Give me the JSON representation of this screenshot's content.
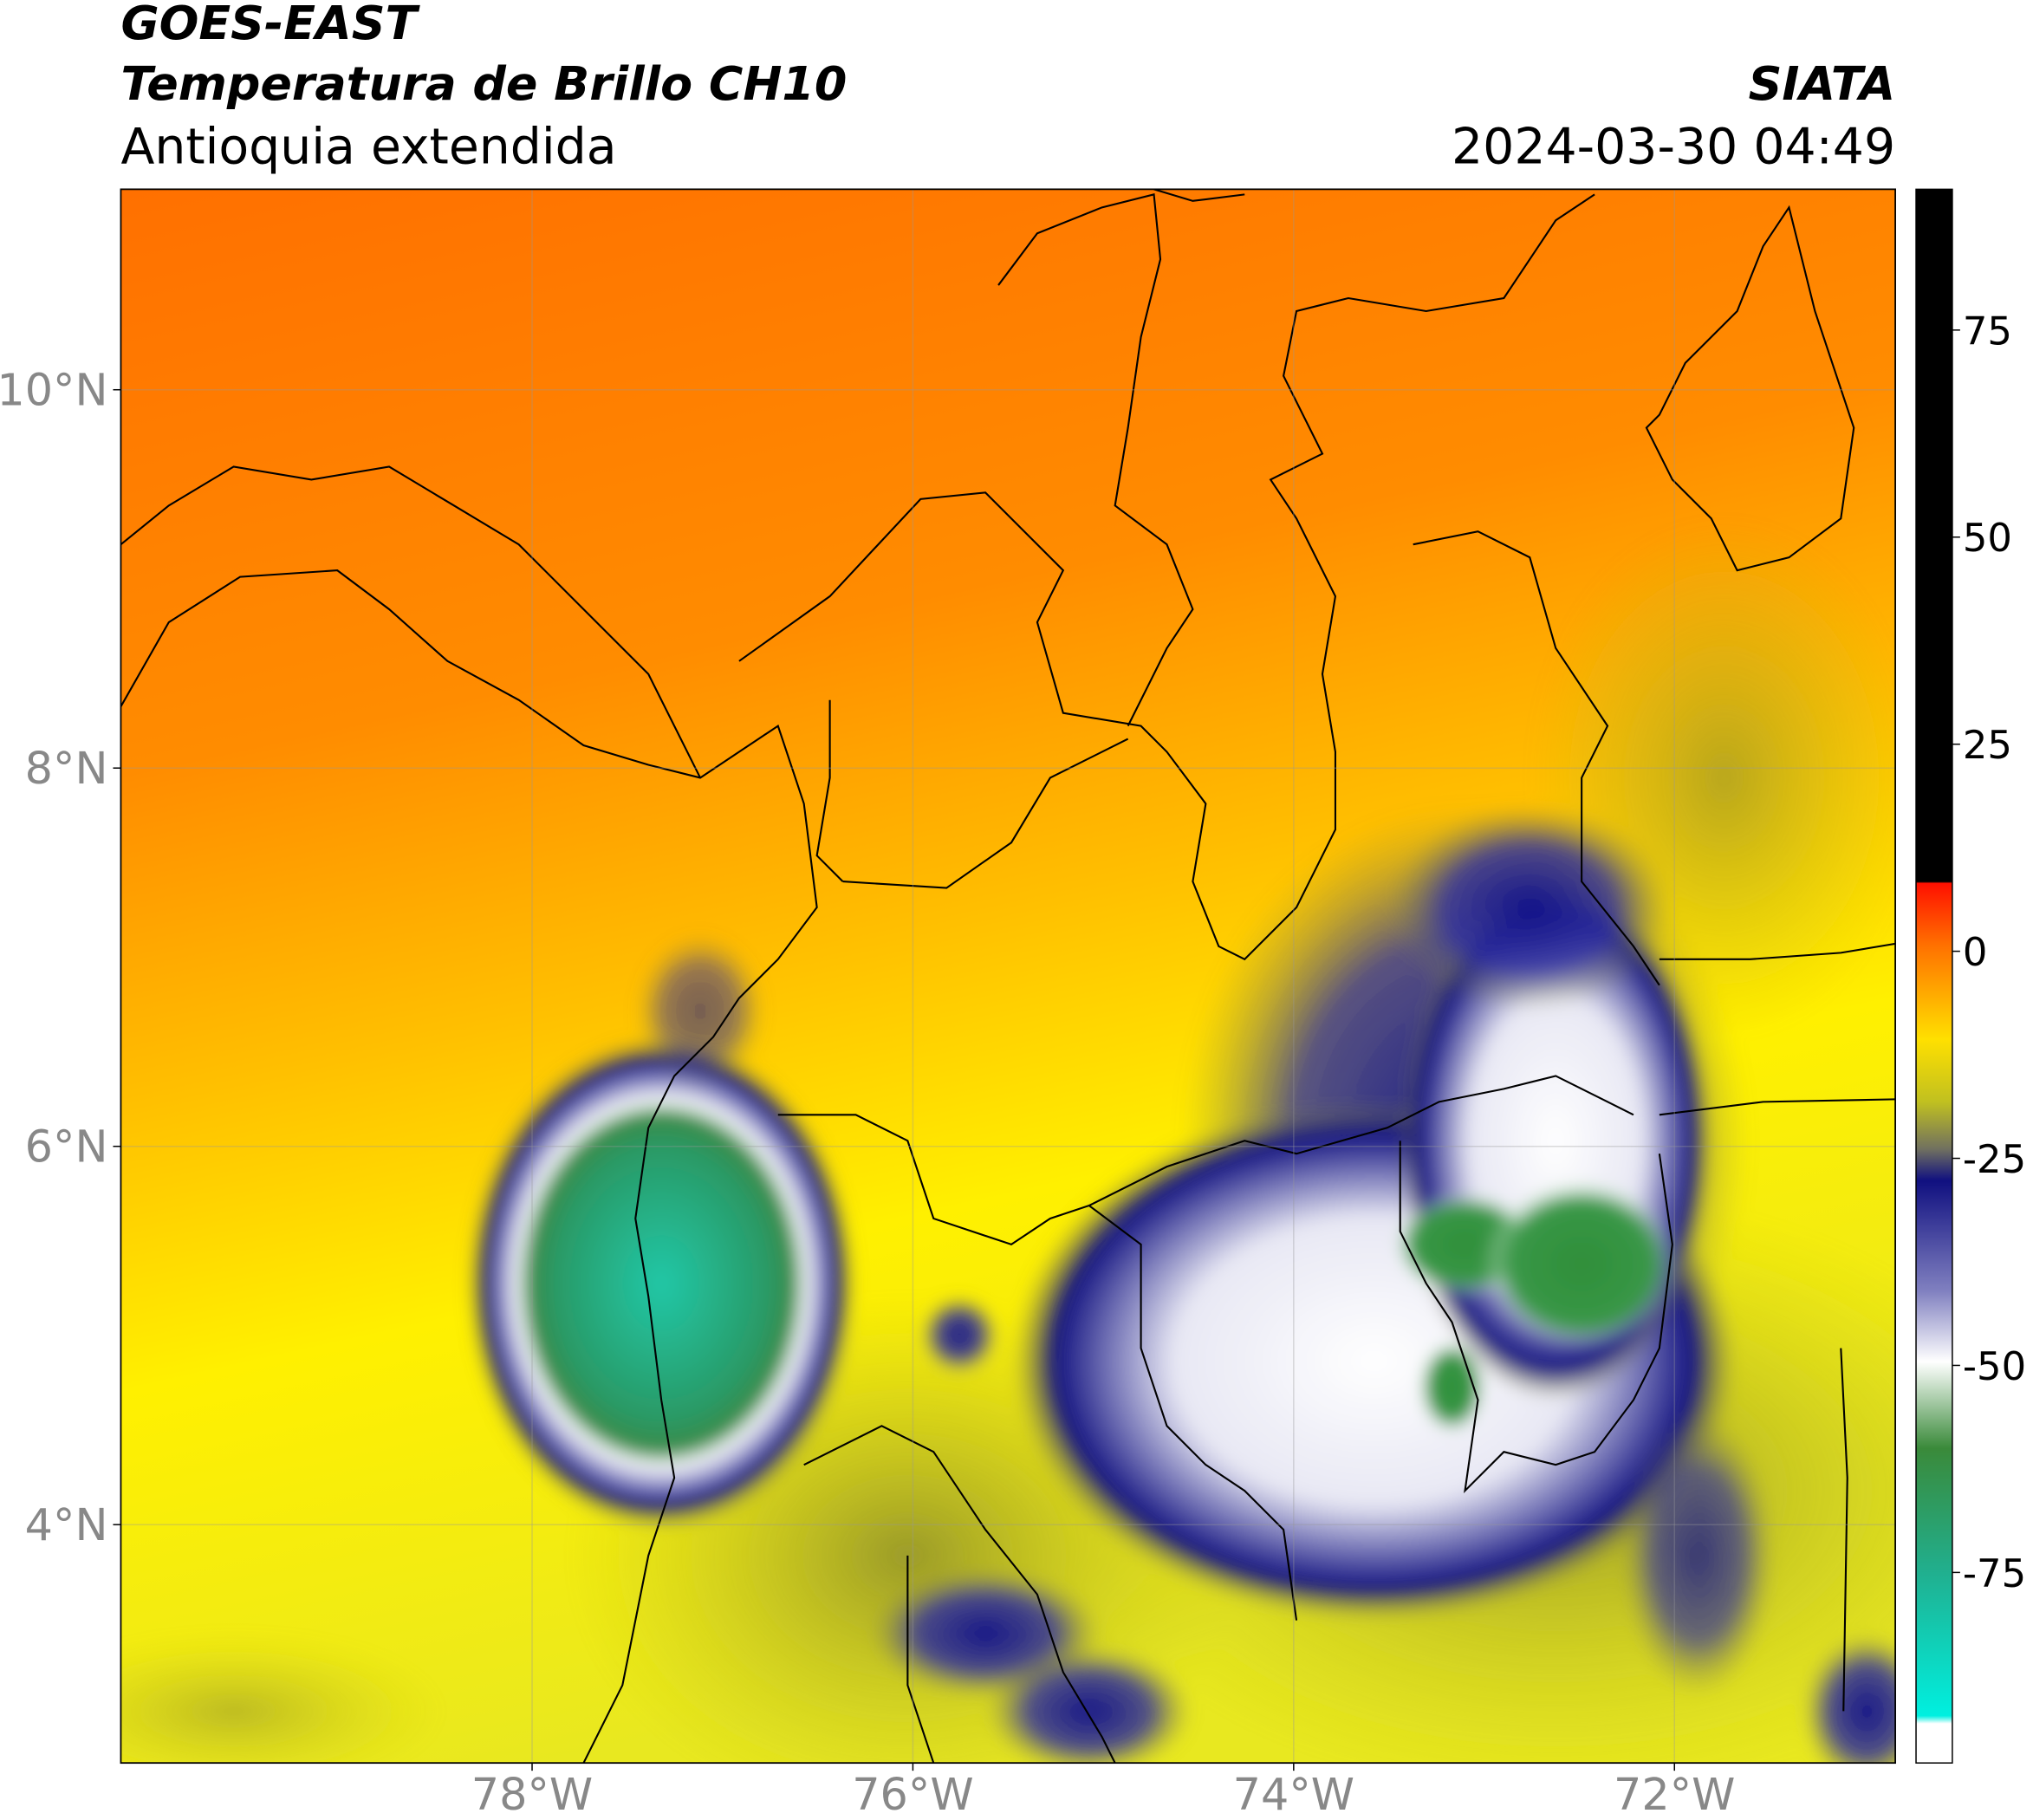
{
  "header": {
    "title": "GOES-EAST",
    "subtitle": "Temperatura de Brillo CH10",
    "region": "Antioquia extendida",
    "source": "SIATA",
    "datetime": "2024-03-30 04:49"
  },
  "map": {
    "xlim": [
      -80.16,
      -70.84
    ],
    "ylim": [
      2.74,
      11.06
    ],
    "xticks": [
      {
        "value": -78,
        "label": "78°W"
      },
      {
        "value": -76,
        "label": "76°W"
      },
      {
        "value": -74,
        "label": "74°W"
      },
      {
        "value": -72,
        "label": "72°W"
      }
    ],
    "yticks": [
      {
        "value": 10,
        "label": "10°N"
      },
      {
        "value": 8,
        "label": "8°N"
      },
      {
        "value": 6,
        "label": "6°N"
      },
      {
        "value": 4,
        "label": "4°N"
      }
    ],
    "grid": true
  },
  "colorbar": {
    "lim": [
      -98,
      92
    ],
    "ticks": [
      75,
      50,
      25,
      0,
      -25,
      -50,
      -75
    ]
  }
}
